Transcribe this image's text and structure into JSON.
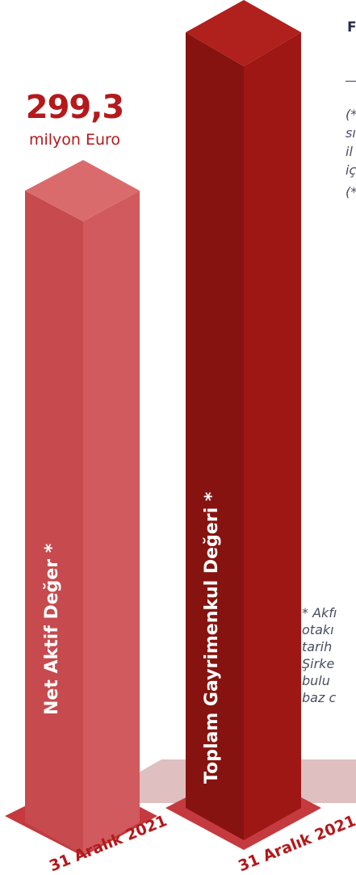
{
  "chart_data": {
    "type": "bar",
    "categories": [
      "Net Aktif Değer *",
      "Toplam Gayrimenkul Değeri *"
    ],
    "dates": [
      "31 Aralık 2021",
      "31 Aralık 2021"
    ],
    "values": [
      299.3,
      null
    ],
    "value_labels": {
      "number": "299,3",
      "unit": "milyon Euro"
    },
    "colors": {
      "bar1_front": "#d05a5e",
      "bar1_side": "#c64a4e",
      "bar1_top": "#da6b6d",
      "bar2_front": "#9e1714",
      "bar2_side": "#86130f",
      "bar2_top": "#b0201c",
      "floor": "#dfbfc0",
      "base": "#c53a3f",
      "text_accent": "#b4191b"
    }
  },
  "side_panel": {
    "heading": "F",
    "notes": [
      "(*",
      "sı",
      "il",
      "iç",
      "(*"
    ]
  },
  "footnote": {
    "lines": [
      "* Akfı",
      "otakı",
      "tarih",
      "Şirke",
      "bulu",
      "baz c"
    ]
  }
}
